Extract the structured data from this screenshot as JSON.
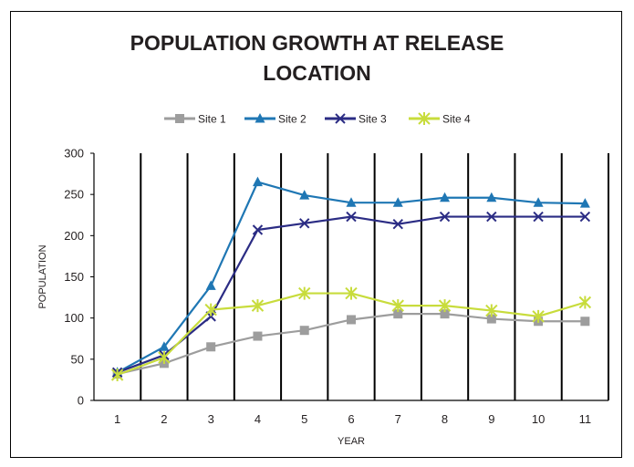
{
  "chart_data": {
    "type": "line",
    "title_lines": [
      "POPULATION GROWTH AT RELEASE",
      "LOCATION"
    ],
    "xlabel": "YEAR",
    "ylabel": "POPULATION",
    "categories": [
      "1",
      "2",
      "3",
      "4",
      "5",
      "6",
      "7",
      "8",
      "9",
      "10",
      "11"
    ],
    "ylim": [
      0,
      300
    ],
    "yticks": [
      0,
      50,
      100,
      150,
      200,
      250,
      300
    ],
    "grid": "vertical",
    "legend_position": "top",
    "series": [
      {
        "name": "Site 1",
        "color": "#9d9d9d",
        "marker": "square",
        "values": [
          32,
          45,
          65,
          78,
          85,
          98,
          105,
          105,
          99,
          96,
          96
        ]
      },
      {
        "name": "Site 2",
        "color": "#1f77b4",
        "marker": "triangle",
        "values": [
          34,
          65,
          139,
          265,
          249,
          240,
          240,
          246,
          246,
          240,
          239
        ]
      },
      {
        "name": "Site 3",
        "color": "#2b2c84",
        "marker": "x",
        "values": [
          34,
          55,
          102,
          207,
          215,
          223,
          214,
          223,
          223,
          223,
          223
        ]
      },
      {
        "name": "Site 4",
        "color": "#c8dc3c",
        "marker": "asterisk",
        "values": [
          31,
          52,
          110,
          115,
          130,
          130,
          115,
          115,
          109,
          102,
          119
        ]
      }
    ]
  }
}
